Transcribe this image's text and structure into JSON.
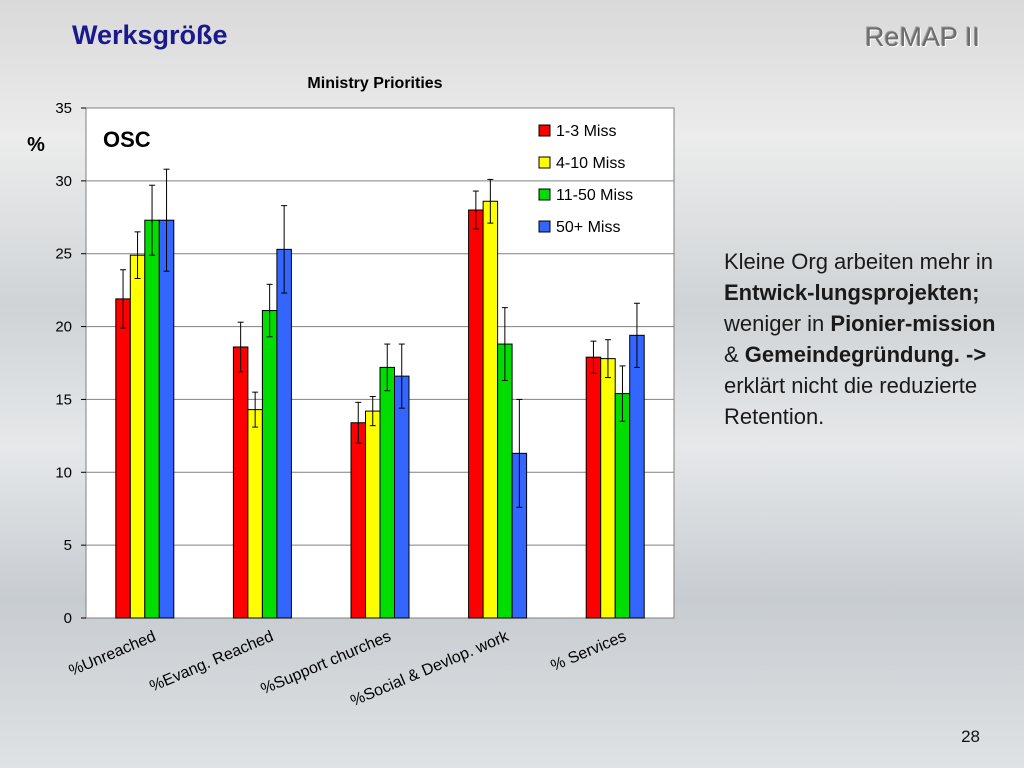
{
  "slide": {
    "title": "Werksgröße",
    "brand": "ReMAP II",
    "page_number": "28"
  },
  "note": {
    "p1": "Kleine Org arbeiten mehr in ",
    "b1": "Entwick-lungsprojekten;",
    "p2": " weniger in ",
    "b2": "Pionier-mission",
    "p3": " & ",
    "b3": "Gemeindegründung.",
    "p4": " ",
    "b4": "->",
    "p5": " erklärt nicht die reduzierte Retention."
  },
  "colors": {
    "series": [
      "#ff0000",
      "#ffff00",
      "#00dd00",
      "#3366ff"
    ],
    "plot_background": "#ffffff"
  },
  "chart_data": {
    "type": "bar",
    "title": "Ministry Priorities",
    "ylabel": "%",
    "inset_label": "OSC",
    "ylim": [
      0,
      35
    ],
    "yticks": [
      0,
      5,
      10,
      15,
      20,
      25,
      30,
      35
    ],
    "grid": true,
    "legend_position": "top-right",
    "categories": [
      "%Unreached",
      "%Evang. Reached",
      "%Support churches",
      "%Social & Devlop. work",
      "% Services"
    ],
    "series": [
      {
        "name": "1-3 Miss",
        "values": [
          21.9,
          18.6,
          13.4,
          28.0,
          17.9
        ],
        "error": [
          2.0,
          1.7,
          1.4,
          1.3,
          1.1
        ]
      },
      {
        "name": "4-10 Miss",
        "values": [
          24.9,
          14.3,
          14.2,
          28.6,
          17.8
        ],
        "error": [
          1.6,
          1.2,
          1.0,
          1.5,
          1.3
        ]
      },
      {
        "name": "11-50 Miss",
        "values": [
          27.3,
          21.1,
          17.2,
          18.8,
          15.4
        ],
        "error": [
          2.4,
          1.8,
          1.6,
          2.5,
          1.9
        ]
      },
      {
        "name": "50+ Miss",
        "values": [
          27.3,
          25.3,
          16.6,
          11.3,
          19.4
        ],
        "error": [
          3.5,
          3.0,
          2.2,
          3.7,
          2.2
        ]
      }
    ]
  }
}
